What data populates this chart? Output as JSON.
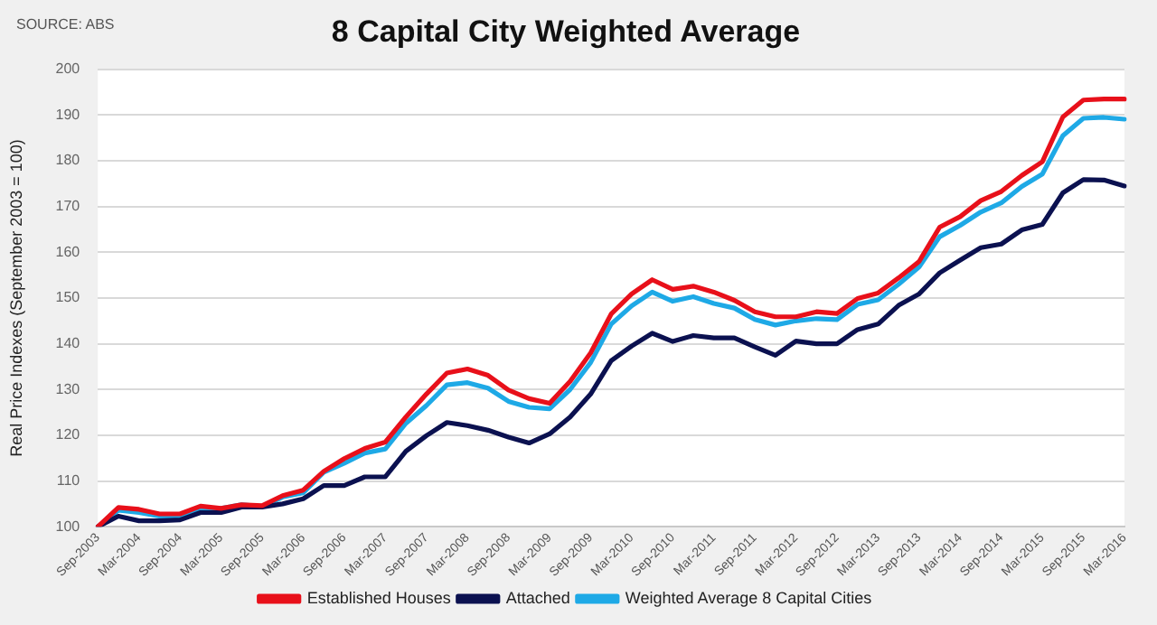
{
  "chart_data": {
    "type": "line",
    "title": "8 Capital City Weighted Average",
    "ylabel": "Real Price Indexes (September 2003 = 100)",
    "annotations": [
      "SOURCE: ABS"
    ],
    "categories": [
      "Sep-2003",
      null,
      "Mar-2004",
      null,
      "Sep-2004",
      null,
      "Mar-2005",
      null,
      "Sep-2005",
      null,
      "Mar-2006",
      null,
      "Sep-2006",
      null,
      "Mar-2007",
      null,
      "Sep-2007",
      null,
      "Mar-2008",
      null,
      "Sep-2008",
      null,
      "Mar-2009",
      null,
      "Sep-2009",
      null,
      "Mar-2010",
      null,
      "Sep-2010",
      null,
      "Mar-2011",
      null,
      "Sep-2011",
      null,
      "Mar-2012",
      null,
      "Sep-2012",
      null,
      "Mar-2013",
      null,
      "Sep-2013",
      null,
      "Mar-2014",
      null,
      "Sep-2014",
      null,
      "Mar-2015",
      null,
      "Sep-2015",
      null,
      "Mar-2016"
    ],
    "series": [
      {
        "name": "Established Houses",
        "color": "#e8101a",
        "values": [
          100,
          104.2,
          103.8,
          102.8,
          102.8,
          104.5,
          104,
          104.8,
          104.6,
          106.8,
          108,
          112.1,
          114.9,
          117.1,
          118.5,
          124,
          129,
          133.6,
          134.5,
          133.1,
          129.9,
          128,
          127,
          131.8,
          138,
          146.5,
          150.9,
          154,
          151.9,
          152.6,
          151.3,
          149.5,
          147,
          145.9,
          145.9,
          147,
          146.6,
          149.9,
          151.1,
          154.4,
          158,
          165.5,
          167.8,
          171.3,
          173.3,
          176.8,
          179.8,
          189.6,
          193.3,
          193.5,
          193.5
        ]
      },
      {
        "name": "Attached",
        "color": "#0b1150",
        "values": [
          100,
          102.3,
          101.3,
          101.3,
          101.5,
          103.1,
          103.1,
          104.3,
          104.3,
          105,
          106.1,
          109,
          109,
          110.9,
          110.9,
          116.5,
          119.9,
          122.8,
          122.1,
          121.1,
          119.6,
          118.3,
          120.3,
          124,
          129,
          136.3,
          139.5,
          142.3,
          140.5,
          141.8,
          141.3,
          141.3,
          139.3,
          137.5,
          140.6,
          140,
          140,
          143.1,
          144.3,
          148.4,
          150.9,
          155.5,
          158.3,
          161,
          161.8,
          164.9,
          166.1,
          173,
          175.9,
          175.8,
          174.5
        ]
      },
      {
        "name": "Weighted Average 8 Capital Cities",
        "color": "#1ea9e6",
        "values": [
          100,
          103.6,
          103.1,
          102.3,
          102.1,
          104,
          104,
          104.8,
          104.4,
          106.5,
          107.4,
          111.9,
          113.9,
          116.1,
          117,
          122.6,
          126.5,
          131,
          131.5,
          130.3,
          127.4,
          126.1,
          125.8,
          130,
          135.9,
          144.3,
          148.3,
          151.3,
          149.3,
          150.3,
          148.8,
          147.8,
          145.3,
          144.1,
          145,
          145.5,
          145.3,
          148.6,
          149.6,
          153,
          156.8,
          163.4,
          165.9,
          168.8,
          170.8,
          174.4,
          177.1,
          185.5,
          189.3,
          189.5,
          189.1
        ]
      }
    ],
    "ylim": [
      100,
      200
    ],
    "yticks": [
      100,
      110,
      120,
      130,
      140,
      150,
      160,
      170,
      180,
      190,
      200
    ],
    "grid": "y",
    "legend": "bottom",
    "marker": "none"
  }
}
